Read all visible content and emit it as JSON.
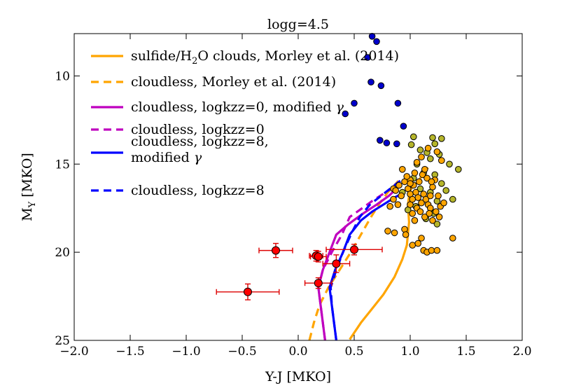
{
  "chart_data": {
    "type": "scatter",
    "title": "logg=4.5",
    "xlabel": "Y-J [MKO]",
    "ylabel_main": "M",
    "ylabel_sub": "Y",
    "ylabel_rest": " [MKO]",
    "xlim": [
      -2.0,
      2.0
    ],
    "ylim": [
      25,
      7.6
    ],
    "y_inverted": true,
    "grid": false,
    "legend_position": "top-left",
    "x_ticks": [
      -2.0,
      -1.5,
      -1.0,
      -0.5,
      0.0,
      0.5,
      1.0,
      1.5,
      2.0
    ],
    "x_tick_labels": [
      "−2.0",
      "−1.5",
      "−1.0",
      "−0.5",
      "0.0",
      "0.5",
      "1.0",
      "1.5",
      "2.0"
    ],
    "y_ticks": [
      10,
      15,
      20,
      25
    ],
    "y_tick_labels": [
      "10",
      "15",
      "20",
      "25"
    ],
    "colors": {
      "orange": "#ffa500",
      "magenta": "#bf00bf",
      "blue": "#0000ff",
      "red": "#ff0000",
      "err": "#dd0000",
      "olive": "#b5b52a",
      "navy": "#0000cc"
    },
    "legend": [
      {
        "parts": [
          "sulfide/H",
          "2",
          "O clouds, Morley et al. (2014)"
        ],
        "color": "#ffa500",
        "dash": false
      },
      {
        "parts": [
          "cloudless, Morley et al. (2014)"
        ],
        "color": "#ffa500",
        "dash": true
      },
      {
        "parts": [
          "cloudless, logkzz=0, modified ",
          "γ"
        ],
        "color": "#bf00bf",
        "dash": false
      },
      {
        "parts": [
          "cloudless, logkzz=0"
        ],
        "color": "#bf00bf",
        "dash": true
      },
      {
        "parts": [
          "cloudless, logkzz=8,",
          "modified ",
          "γ"
        ],
        "color": "#0000ff",
        "dash": false
      },
      {
        "parts": [
          "cloudless, logkzz=8"
        ],
        "color": "#0000ff",
        "dash": true
      }
    ],
    "lines": [
      {
        "name": "sulfide/H2O clouds, Morley et al. (2014)",
        "color": "#ffa500",
        "dash": false,
        "x": [
          0.46,
          0.56,
          0.66,
          0.76,
          0.86,
          0.93,
          0.97,
          0.99,
          0.98,
          0.99,
          1.0,
          1.02,
          1.05,
          1.08,
          1.1,
          1.13,
          1.16
        ],
        "y": [
          24.95,
          24.0,
          23.2,
          22.4,
          21.4,
          20.4,
          19.6,
          18.3,
          17.3,
          16.8,
          16.5,
          16.3,
          16.1,
          15.9,
          15.7,
          15.4,
          15.2
        ]
      },
      {
        "name": "cloudless, Morley et al. (2014)",
        "color": "#ffa500",
        "dash": true,
        "x": [
          0.1,
          0.14,
          0.19,
          0.27,
          0.37,
          0.47,
          0.56,
          0.65,
          0.73,
          0.8,
          0.86,
          0.9
        ],
        "y": [
          25.0,
          24.0,
          23.0,
          22.0,
          21.0,
          20.0,
          19.0,
          18.0,
          17.2,
          16.6,
          16.2,
          15.9
        ]
      },
      {
        "name": "cloudless, logkzz=0, modified gamma",
        "color": "#bf00bf",
        "dash": false,
        "x": [
          0.24,
          0.22,
          0.2,
          0.18,
          0.22,
          0.28,
          0.34,
          0.45,
          0.58,
          0.7,
          0.81,
          0.91
        ],
        "y": [
          25.0,
          24.0,
          23.0,
          22.0,
          21.0,
          20.0,
          19.0,
          18.4,
          17.8,
          17.3,
          16.8,
          16.2
        ]
      },
      {
        "name": "cloudless, logkzz=0",
        "color": "#bf00bf",
        "dash": true,
        "x": [
          0.24,
          0.22,
          0.2,
          0.18,
          0.22,
          0.3,
          0.39,
          0.46,
          0.55,
          0.66,
          0.78,
          0.9
        ],
        "y": [
          25.0,
          24.0,
          23.0,
          22.0,
          21.0,
          20.0,
          19.0,
          18.0,
          17.6,
          17.1,
          16.6,
          16.1
        ]
      },
      {
        "name": "cloudless, logkzz=8, modified gamma",
        "color": "#0000ff",
        "dash": false,
        "x": [
          0.34,
          0.32,
          0.3,
          0.28,
          0.33,
          0.4,
          0.46,
          0.56,
          0.66,
          0.76,
          0.86,
          0.95
        ],
        "y": [
          25.0,
          24.0,
          23.0,
          22.0,
          21.0,
          20.0,
          19.0,
          18.2,
          17.7,
          17.3,
          16.9,
          16.6
        ]
      },
      {
        "name": "cloudless, logkzz=8",
        "color": "#0000ff",
        "dash": true,
        "x": [
          0.34,
          0.32,
          0.3,
          0.29,
          0.34,
          0.4,
          0.47,
          0.55,
          0.64,
          0.74,
          0.84,
          0.94
        ],
        "y": [
          25.0,
          24.0,
          23.0,
          22.0,
          21.0,
          20.0,
          19.0,
          18.0,
          17.3,
          16.8,
          16.3,
          15.8
        ]
      }
    ],
    "points_red": [
      {
        "x": -0.45,
        "y": 22.25,
        "xerr": 0.28,
        "yerr": 0.45
      },
      {
        "x": -0.2,
        "y": 19.9,
        "xerr": 0.15,
        "yerr": 0.4
      },
      {
        "x": 0.16,
        "y": 20.2,
        "xerr": 0.06,
        "yerr": 0.3
      },
      {
        "x": 0.18,
        "y": 20.25,
        "xerr": 0.07,
        "yerr": 0.3
      },
      {
        "x": 0.18,
        "y": 21.75,
        "xerr": 0.12,
        "yerr": 0.3
      },
      {
        "x": 0.34,
        "y": 20.65,
        "xerr": 0.12,
        "yerr": 0.5
      },
      {
        "x": 0.5,
        "y": 19.85,
        "xerr": 0.25,
        "yerr": 0.3
      }
    ],
    "points_navy": [
      {
        "x": 0.66,
        "y": 7.75
      },
      {
        "x": 0.7,
        "y": 8.05
      },
      {
        "x": 0.62,
        "y": 8.95
      },
      {
        "x": 0.65,
        "y": 10.35
      },
      {
        "x": 0.74,
        "y": 10.55
      },
      {
        "x": 0.5,
        "y": 11.55
      },
      {
        "x": 0.42,
        "y": 12.15
      },
      {
        "x": 0.89,
        "y": 11.55
      },
      {
        "x": 0.94,
        "y": 12.85
      },
      {
        "x": 0.73,
        "y": 13.65
      },
      {
        "x": 0.79,
        "y": 13.8
      },
      {
        "x": 0.88,
        "y": 13.85
      }
    ],
    "points_olive": [
      {
        "x": 1.03,
        "y": 13.45
      },
      {
        "x": 1.2,
        "y": 13.5
      },
      {
        "x": 1.01,
        "y": 13.9
      },
      {
        "x": 1.22,
        "y": 13.85
      },
      {
        "x": 1.28,
        "y": 13.55
      },
      {
        "x": 1.09,
        "y": 14.2
      },
      {
        "x": 1.15,
        "y": 14.35
      },
      {
        "x": 1.26,
        "y": 14.45
      },
      {
        "x": 1.18,
        "y": 14.7
      },
      {
        "x": 1.06,
        "y": 15.0
      },
      {
        "x": 1.35,
        "y": 15.0
      },
      {
        "x": 1.43,
        "y": 15.3
      },
      {
        "x": 1.12,
        "y": 15.5
      },
      {
        "x": 1.22,
        "y": 15.6
      },
      {
        "x": 1.03,
        "y": 15.8
      },
      {
        "x": 1.28,
        "y": 16.1
      },
      {
        "x": 1.09,
        "y": 16.4
      },
      {
        "x": 1.18,
        "y": 16.6
      },
      {
        "x": 1.24,
        "y": 17.1
      },
      {
        "x": 1.38,
        "y": 17.0
      },
      {
        "x": 1.05,
        "y": 17.4
      },
      {
        "x": 1.21,
        "y": 17.8
      },
      {
        "x": 1.14,
        "y": 18.1
      },
      {
        "x": 1.24,
        "y": 18.4
      },
      {
        "x": 0.98,
        "y": 17.6
      },
      {
        "x": 1.32,
        "y": 16.5
      },
      {
        "x": 0.93,
        "y": 16.6
      }
    ],
    "points_orange": [
      {
        "x": 0.85,
        "y": 16.4
      },
      {
        "x": 0.87,
        "y": 16.5
      },
      {
        "x": 0.9,
        "y": 16.2
      },
      {
        "x": 0.95,
        "y": 16.0
      },
      {
        "x": 1.0,
        "y": 15.9
      },
      {
        "x": 1.03,
        "y": 16.2
      },
      {
        "x": 1.05,
        "y": 16.6
      },
      {
        "x": 1.07,
        "y": 16.9
      },
      {
        "x": 1.1,
        "y": 17.2
      },
      {
        "x": 1.12,
        "y": 16.7
      },
      {
        "x": 1.14,
        "y": 17.0
      },
      {
        "x": 1.16,
        "y": 17.3
      },
      {
        "x": 1.18,
        "y": 17.5
      },
      {
        "x": 1.2,
        "y": 16.3
      },
      {
        "x": 1.22,
        "y": 15.9
      },
      {
        "x": 1.25,
        "y": 16.8
      },
      {
        "x": 1.27,
        "y": 17.4
      },
      {
        "x": 1.0,
        "y": 17.3
      },
      {
        "x": 1.02,
        "y": 17.8
      },
      {
        "x": 1.04,
        "y": 18.2
      },
      {
        "x": 1.06,
        "y": 17.5
      },
      {
        "x": 1.08,
        "y": 16.0
      },
      {
        "x": 1.11,
        "y": 15.6
      },
      {
        "x": 1.13,
        "y": 15.3
      },
      {
        "x": 1.06,
        "y": 14.9
      },
      {
        "x": 1.1,
        "y": 14.6
      },
      {
        "x": 1.16,
        "y": 14.1
      },
      {
        "x": 1.24,
        "y": 14.3
      },
      {
        "x": 1.28,
        "y": 14.8
      },
      {
        "x": 1.15,
        "y": 15.8
      },
      {
        "x": 1.19,
        "y": 16.0
      },
      {
        "x": 0.93,
        "y": 15.3
      },
      {
        "x": 0.98,
        "y": 16.4
      },
      {
        "x": 1.0,
        "y": 16.7
      },
      {
        "x": 1.02,
        "y": 17.0
      },
      {
        "x": 1.09,
        "y": 17.7
      },
      {
        "x": 1.13,
        "y": 18.0
      },
      {
        "x": 1.17,
        "y": 17.8
      },
      {
        "x": 1.2,
        "y": 18.2
      },
      {
        "x": 1.23,
        "y": 17.7
      },
      {
        "x": 1.26,
        "y": 18.0
      },
      {
        "x": 0.95,
        "y": 18.7
      },
      {
        "x": 0.96,
        "y": 19.0
      },
      {
        "x": 1.02,
        "y": 19.6
      },
      {
        "x": 1.07,
        "y": 19.5
      },
      {
        "x": 1.12,
        "y": 19.9
      },
      {
        "x": 1.15,
        "y": 20.0
      },
      {
        "x": 1.19,
        "y": 19.9
      },
      {
        "x": 1.24,
        "y": 19.9
      },
      {
        "x": 1.1,
        "y": 19.2
      },
      {
        "x": 0.8,
        "y": 18.8
      },
      {
        "x": 0.86,
        "y": 18.9
      },
      {
        "x": 0.82,
        "y": 17.4
      },
      {
        "x": 0.89,
        "y": 17.3
      },
      {
        "x": 1.38,
        "y": 19.2
      },
      {
        "x": 0.85,
        "y": 17.0
      },
      {
        "x": 0.92,
        "y": 16.8
      },
      {
        "x": 1.04,
        "y": 15.5
      },
      {
        "x": 1.18,
        "y": 16.8
      },
      {
        "x": 1.3,
        "y": 17.2
      },
      {
        "x": 1.0,
        "y": 16.1
      },
      {
        "x": 0.97,
        "y": 15.7
      }
    ]
  }
}
